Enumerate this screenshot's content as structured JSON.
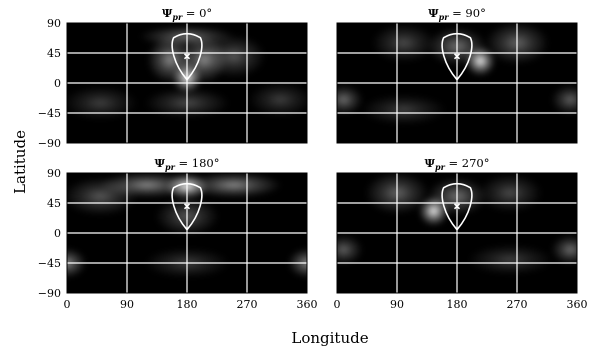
{
  "figure": {
    "xlabel": "Longitude",
    "ylabel": "Latitude"
  },
  "chart_data": [
    {
      "type": "heatmap",
      "title": "Ψpr = 0°",
      "title_symbol": "Ψ",
      "title_sub": "pr",
      "title_value": " = 0°",
      "xlim": [
        0,
        360
      ],
      "ylim": [
        -90,
        90
      ],
      "xticks": [
        0,
        90,
        180,
        270,
        360
      ],
      "yticks": [
        90,
        45,
        0,
        -45,
        -90
      ],
      "grid": true,
      "marker": {
        "lon": 180,
        "lat": 40
      },
      "blobs": [
        {
          "lon": 180,
          "lat": 8,
          "sx": 14,
          "sy": 14,
          "a": 1.0
        },
        {
          "lon": 155,
          "lat": 35,
          "sx": 22,
          "sy": 22,
          "a": 0.55
        },
        {
          "lon": 205,
          "lat": 35,
          "sx": 22,
          "sy": 22,
          "a": 0.55
        },
        {
          "lon": 180,
          "lat": 70,
          "sx": 45,
          "sy": 10,
          "a": 0.45
        },
        {
          "lon": 250,
          "lat": 40,
          "sx": 30,
          "sy": 20,
          "a": 0.35
        },
        {
          "lon": 180,
          "lat": -30,
          "sx": 40,
          "sy": 14,
          "a": 0.3
        },
        {
          "lon": 50,
          "lat": -30,
          "sx": 35,
          "sy": 16,
          "a": 0.25
        },
        {
          "lon": 320,
          "lat": -25,
          "sx": 30,
          "sy": 16,
          "a": 0.25
        }
      ]
    },
    {
      "type": "heatmap",
      "title": "Ψpr = 90°",
      "title_symbol": "Ψ",
      "title_sub": "pr",
      "title_value": " = 90°",
      "xlim": [
        0,
        360
      ],
      "ylim": [
        -90,
        90
      ],
      "xticks": [
        0,
        90,
        180,
        270,
        360
      ],
      "yticks": [
        90,
        45,
        0,
        -45,
        -90
      ],
      "grid": true,
      "marker": {
        "lon": 180,
        "lat": 40
      },
      "blobs": [
        {
          "lon": 215,
          "lat": 33,
          "sx": 14,
          "sy": 14,
          "a": 1.0
        },
        {
          "lon": 180,
          "lat": 55,
          "sx": 28,
          "sy": 18,
          "a": 0.45
        },
        {
          "lon": 270,
          "lat": 60,
          "sx": 30,
          "sy": 20,
          "a": 0.4
        },
        {
          "lon": 100,
          "lat": 60,
          "sx": 30,
          "sy": 18,
          "a": 0.3
        },
        {
          "lon": 10,
          "lat": -25,
          "sx": 18,
          "sy": 14,
          "a": 0.45
        },
        {
          "lon": 350,
          "lat": -25,
          "sx": 18,
          "sy": 14,
          "a": 0.4
        },
        {
          "lon": 100,
          "lat": -40,
          "sx": 40,
          "sy": 14,
          "a": 0.25
        }
      ]
    },
    {
      "type": "heatmap",
      "title": "Ψpr = 180°",
      "title_symbol": "Ψ",
      "title_sub": "pr",
      "title_value": " = 180°",
      "xlim": [
        0,
        360
      ],
      "ylim": [
        -90,
        90
      ],
      "xticks": [
        0,
        90,
        180,
        270,
        360
      ],
      "yticks": [
        90,
        45,
        0,
        -45,
        -90
      ],
      "grid": true,
      "marker": {
        "lon": 180,
        "lat": 40
      },
      "blobs": [
        {
          "lon": 180,
          "lat": 70,
          "sx": 20,
          "sy": 12,
          "a": 1.0
        },
        {
          "lon": 120,
          "lat": 72,
          "sx": 45,
          "sy": 12,
          "a": 0.55
        },
        {
          "lon": 250,
          "lat": 72,
          "sx": 45,
          "sy": 12,
          "a": 0.55
        },
        {
          "lon": 50,
          "lat": 55,
          "sx": 35,
          "sy": 18,
          "a": 0.35
        },
        {
          "lon": 180,
          "lat": 25,
          "sx": 30,
          "sy": 18,
          "a": 0.35
        },
        {
          "lon": 0,
          "lat": -45,
          "sx": 18,
          "sy": 14,
          "a": 0.55
        },
        {
          "lon": 360,
          "lat": -45,
          "sx": 18,
          "sy": 14,
          "a": 0.55
        },
        {
          "lon": 180,
          "lat": -45,
          "sx": 40,
          "sy": 14,
          "a": 0.25
        }
      ]
    },
    {
      "type": "heatmap",
      "title": "Ψpr = 270°",
      "title_symbol": "Ψ",
      "title_sub": "pr",
      "title_value": " = 270°",
      "xlim": [
        0,
        360
      ],
      "ylim": [
        -90,
        90
      ],
      "xticks": [
        0,
        90,
        180,
        270,
        360
      ],
      "yticks": [
        90,
        45,
        0,
        -45,
        -90
      ],
      "grid": true,
      "marker": {
        "lon": 180,
        "lat": 40
      },
      "blobs": [
        {
          "lon": 145,
          "lat": 33,
          "sx": 14,
          "sy": 14,
          "a": 1.0
        },
        {
          "lon": 180,
          "lat": 55,
          "sx": 28,
          "sy": 18,
          "a": 0.45
        },
        {
          "lon": 90,
          "lat": 60,
          "sx": 30,
          "sy": 20,
          "a": 0.4
        },
        {
          "lon": 260,
          "lat": 60,
          "sx": 30,
          "sy": 18,
          "a": 0.3
        },
        {
          "lon": 10,
          "lat": -25,
          "sx": 18,
          "sy": 14,
          "a": 0.4
        },
        {
          "lon": 350,
          "lat": -25,
          "sx": 18,
          "sy": 14,
          "a": 0.45
        },
        {
          "lon": 260,
          "lat": -40,
          "sx": 40,
          "sy": 14,
          "a": 0.25
        }
      ]
    }
  ]
}
